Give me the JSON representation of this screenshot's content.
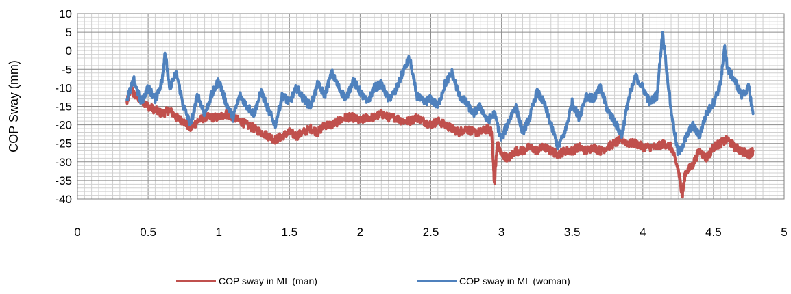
{
  "chart_data": {
    "type": "line",
    "title": "",
    "xlabel": "",
    "ylabel": "COP Sway (mm)",
    "xlim": [
      0,
      5
    ],
    "ylim": [
      -40,
      10
    ],
    "xticks": [
      "0",
      "0.5",
      "1",
      "1.5",
      "2",
      "2.5",
      "3",
      "3.5",
      "4",
      "4.5",
      "5"
    ],
    "yticks": [
      "10",
      "5",
      "0",
      "-5",
      "-10",
      "-15",
      "-20",
      "-25",
      "-30",
      "-35",
      "-40"
    ],
    "grid": true,
    "legend_position": "bottom",
    "series": [
      {
        "name": "COP sway in ML (man)",
        "color": "#c0504d",
        "x": [
          0.35,
          0.38,
          0.4,
          0.45,
          0.5,
          0.55,
          0.6,
          0.65,
          0.7,
          0.75,
          0.8,
          0.85,
          0.9,
          0.95,
          1.0,
          1.05,
          1.1,
          1.15,
          1.2,
          1.25,
          1.3,
          1.35,
          1.4,
          1.45,
          1.5,
          1.55,
          1.6,
          1.65,
          1.7,
          1.75,
          1.8,
          1.85,
          1.9,
          1.95,
          2.0,
          2.05,
          2.1,
          2.15,
          2.2,
          2.25,
          2.3,
          2.35,
          2.4,
          2.45,
          2.5,
          2.55,
          2.6,
          2.65,
          2.7,
          2.75,
          2.8,
          2.85,
          2.9,
          2.93,
          2.95,
          2.97,
          3.0,
          3.05,
          3.1,
          3.15,
          3.2,
          3.25,
          3.3,
          3.35,
          3.4,
          3.45,
          3.5,
          3.55,
          3.6,
          3.65,
          3.7,
          3.75,
          3.8,
          3.85,
          3.9,
          3.95,
          4.0,
          4.05,
          4.1,
          4.15,
          4.2,
          4.25,
          4.28,
          4.3,
          4.35,
          4.4,
          4.45,
          4.5,
          4.55,
          4.6,
          4.65,
          4.7,
          4.75,
          4.78
        ],
        "y": [
          -14,
          -10,
          -12,
          -13,
          -15,
          -16,
          -17,
          -16,
          -18,
          -19,
          -21,
          -19,
          -18,
          -18,
          -18,
          -17,
          -18,
          -19,
          -20,
          -21,
          -22,
          -23,
          -24,
          -23,
          -22,
          -23,
          -22,
          -21,
          -22,
          -20,
          -20,
          -19,
          -18,
          -18,
          -19,
          -18,
          -18,
          -17,
          -18,
          -18,
          -19,
          -19,
          -18,
          -19,
          -20,
          -19,
          -20,
          -21,
          -22,
          -21,
          -22,
          -22,
          -21,
          -22,
          -36,
          -25,
          -28,
          -29,
          -27,
          -27,
          -26,
          -27,
          -26,
          -27,
          -28,
          -27,
          -27,
          -26,
          -27,
          -26,
          -27,
          -26,
          -25,
          -24,
          -25,
          -25,
          -26,
          -26,
          -26,
          -25,
          -26,
          -32,
          -39,
          -33,
          -31,
          -27,
          -29,
          -26,
          -25,
          -24,
          -26,
          -27,
          -28,
          -27
        ]
      },
      {
        "name": "COP sway in ML (woman)",
        "color": "#4f81bd",
        "x": [
          0.35,
          0.4,
          0.45,
          0.5,
          0.55,
          0.6,
          0.62,
          0.65,
          0.7,
          0.75,
          0.8,
          0.85,
          0.9,
          0.95,
          1.0,
          1.05,
          1.1,
          1.15,
          1.2,
          1.25,
          1.3,
          1.35,
          1.4,
          1.45,
          1.5,
          1.55,
          1.6,
          1.65,
          1.7,
          1.75,
          1.8,
          1.85,
          1.9,
          1.95,
          2.0,
          2.05,
          2.1,
          2.15,
          2.2,
          2.25,
          2.3,
          2.35,
          2.4,
          2.45,
          2.5,
          2.55,
          2.6,
          2.65,
          2.7,
          2.75,
          2.8,
          2.85,
          2.9,
          2.95,
          3.0,
          3.05,
          3.1,
          3.15,
          3.2,
          3.25,
          3.3,
          3.35,
          3.4,
          3.45,
          3.5,
          3.55,
          3.6,
          3.65,
          3.7,
          3.75,
          3.8,
          3.85,
          3.9,
          3.95,
          4.0,
          4.05,
          4.1,
          4.14,
          4.2,
          4.25,
          4.3,
          4.35,
          4.4,
          4.45,
          4.5,
          4.55,
          4.58,
          4.6,
          4.65,
          4.7,
          4.75,
          4.78
        ],
        "y": [
          -13,
          -8,
          -14,
          -10,
          -13,
          -8,
          0,
          -10,
          -6,
          -15,
          -20,
          -12,
          -17,
          -12,
          -8,
          -14,
          -18,
          -12,
          -15,
          -17,
          -11,
          -16,
          -20,
          -12,
          -14,
          -10,
          -13,
          -15,
          -9,
          -12,
          -6,
          -10,
          -13,
          -8,
          -11,
          -14,
          -10,
          -9,
          -13,
          -11,
          -6,
          -2,
          -12,
          -14,
          -13,
          -15,
          -9,
          -6,
          -12,
          -14,
          -17,
          -15,
          -19,
          -17,
          -24,
          -19,
          -15,
          -22,
          -18,
          -11,
          -14,
          -20,
          -26,
          -22,
          -14,
          -18,
          -12,
          -13,
          -10,
          -16,
          -19,
          -23,
          -13,
          -7,
          -10,
          -14,
          -12,
          5,
          -16,
          -28,
          -24,
          -20,
          -23,
          -17,
          -14,
          -9,
          1,
          -5,
          -8,
          -12,
          -10,
          -17
        ]
      }
    ]
  }
}
